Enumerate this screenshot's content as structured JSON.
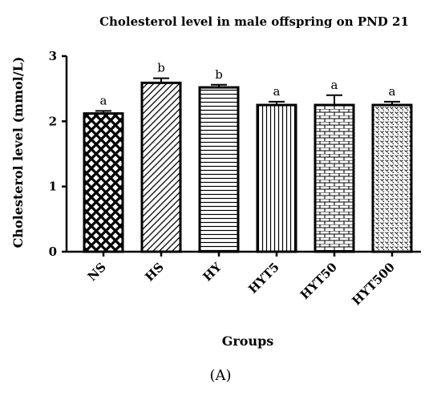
{
  "chart_data": {
    "type": "bar",
    "title": "Cholesterol level in male offspring on PND 21",
    "xlabel": "Groups",
    "ylabel": "Cholesterol level (mmol/L)",
    "ylim": [
      0,
      3
    ],
    "yticks": [
      "0",
      "1",
      "2",
      "3"
    ],
    "categories": [
      "NS",
      "HS",
      "HY",
      "HYT5",
      "HYT50",
      "HYT500"
    ],
    "values": [
      2.12,
      2.59,
      2.52,
      2.25,
      2.25,
      2.25
    ],
    "errors": [
      0.04,
      0.07,
      0.04,
      0.05,
      0.15,
      0.05
    ],
    "significance": [
      "a",
      "b",
      "b",
      "a",
      "a",
      "a"
    ],
    "patterns": [
      "crosshatch",
      "diagonal",
      "horizontal",
      "vertical",
      "brick",
      "dots"
    ],
    "grid": false,
    "legend": "none"
  },
  "panel_label": "(A)"
}
